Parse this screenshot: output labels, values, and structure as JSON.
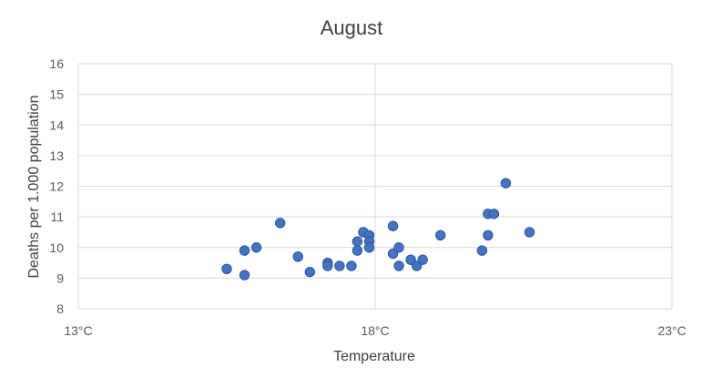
{
  "chart_data": {
    "type": "scatter",
    "title": "August",
    "xlabel": "Temperature",
    "ylabel": "Deaths per 1.000 population",
    "x_unit": "°C",
    "xlim": [
      13,
      23
    ],
    "ylim": [
      8,
      16
    ],
    "x_ticks": [
      13,
      18,
      23
    ],
    "x_tick_labels": [
      "13°C",
      "18°C",
      "23°C"
    ],
    "y_ticks": [
      8,
      9,
      10,
      11,
      12,
      13,
      14,
      15,
      16
    ],
    "y_tick_labels": [
      "8",
      "9",
      "10",
      "11",
      "12",
      "13",
      "14",
      "15",
      "16"
    ],
    "grid": {
      "horizontal": true,
      "vertical": true
    },
    "point_color": "#4472c4",
    "points": [
      {
        "x": 15.5,
        "y": 9.3
      },
      {
        "x": 15.8,
        "y": 9.9
      },
      {
        "x": 15.8,
        "y": 9.1
      },
      {
        "x": 16.0,
        "y": 10.0
      },
      {
        "x": 16.4,
        "y": 10.8
      },
      {
        "x": 16.7,
        "y": 9.7
      },
      {
        "x": 16.9,
        "y": 9.2
      },
      {
        "x": 17.2,
        "y": 9.5
      },
      {
        "x": 17.2,
        "y": 9.4
      },
      {
        "x": 17.4,
        "y": 9.4
      },
      {
        "x": 17.6,
        "y": 9.4
      },
      {
        "x": 17.7,
        "y": 10.2
      },
      {
        "x": 17.7,
        "y": 9.9
      },
      {
        "x": 17.8,
        "y": 10.5
      },
      {
        "x": 17.9,
        "y": 10.4
      },
      {
        "x": 17.9,
        "y": 10.2
      },
      {
        "x": 17.9,
        "y": 10.0
      },
      {
        "x": 18.3,
        "y": 10.7
      },
      {
        "x": 18.3,
        "y": 9.8
      },
      {
        "x": 18.4,
        "y": 10.0
      },
      {
        "x": 18.4,
        "y": 9.4
      },
      {
        "x": 18.6,
        "y": 9.6
      },
      {
        "x": 18.7,
        "y": 9.4
      },
      {
        "x": 18.8,
        "y": 9.6
      },
      {
        "x": 19.1,
        "y": 10.4
      },
      {
        "x": 19.8,
        "y": 9.9
      },
      {
        "x": 19.9,
        "y": 11.1
      },
      {
        "x": 20.0,
        "y": 11.1
      },
      {
        "x": 19.9,
        "y": 10.4
      },
      {
        "x": 20.2,
        "y": 12.1
      },
      {
        "x": 20.6,
        "y": 10.5
      }
    ]
  }
}
